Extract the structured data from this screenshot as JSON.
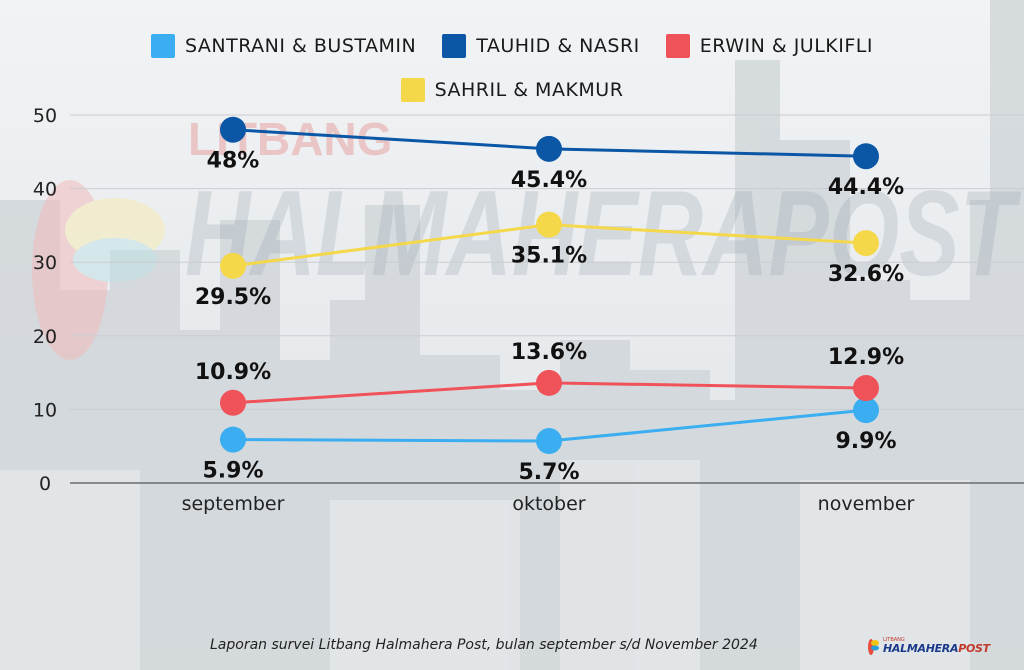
{
  "chart_data": {
    "type": "line",
    "categories": [
      "september",
      "oktober",
      "november"
    ],
    "series": [
      {
        "name": "SANTRANI & BUSTAMIN",
        "color": "#3aaef0",
        "values": [
          5.9,
          5.7,
          9.9
        ],
        "labels": [
          "5.9%",
          "5.7%",
          "9.9%"
        ],
        "label_pos": [
          "below",
          "below",
          "below"
        ]
      },
      {
        "name": "TAUHID & NASRI",
        "color": "#0b57a6",
        "values": [
          48,
          45.4,
          44.4
        ],
        "labels": [
          "48%",
          "45.4%",
          "44.4%"
        ],
        "label_pos": [
          "below",
          "below",
          "below"
        ]
      },
      {
        "name": "ERWIN & JULKIFLI",
        "color": "#f0525a",
        "values": [
          10.9,
          13.6,
          12.9
        ],
        "labels": [
          "10.9%",
          "13.6%",
          "12.9%"
        ],
        "label_pos": [
          "above",
          "above",
          "above"
        ]
      },
      {
        "name": "SAHRIL & MAKMUR",
        "color": "#f5d84a",
        "values": [
          29.5,
          35.1,
          32.6
        ],
        "labels": [
          "29.5%",
          "35.1%",
          "32.6%"
        ],
        "label_pos": [
          "below",
          "below",
          "below"
        ]
      }
    ],
    "ylim": [
      0,
      50
    ],
    "yticks": [
      "0",
      "10",
      "20",
      "30",
      "40",
      "50"
    ],
    "xlabel": "",
    "ylabel": "",
    "grid": true,
    "legend_placement": "top-center"
  },
  "watermark": {
    "top": "LITBANG",
    "main": "HALMAHERAPOST"
  },
  "footer": {
    "caption": "Laporan survei Litbang Halmahera Post, bulan september s/d November  2024"
  },
  "brand": {
    "small": "LITBANG",
    "name_a": "HALMAHERA",
    "name_b": "POST",
    "icon": "litbang-logo-icon"
  }
}
